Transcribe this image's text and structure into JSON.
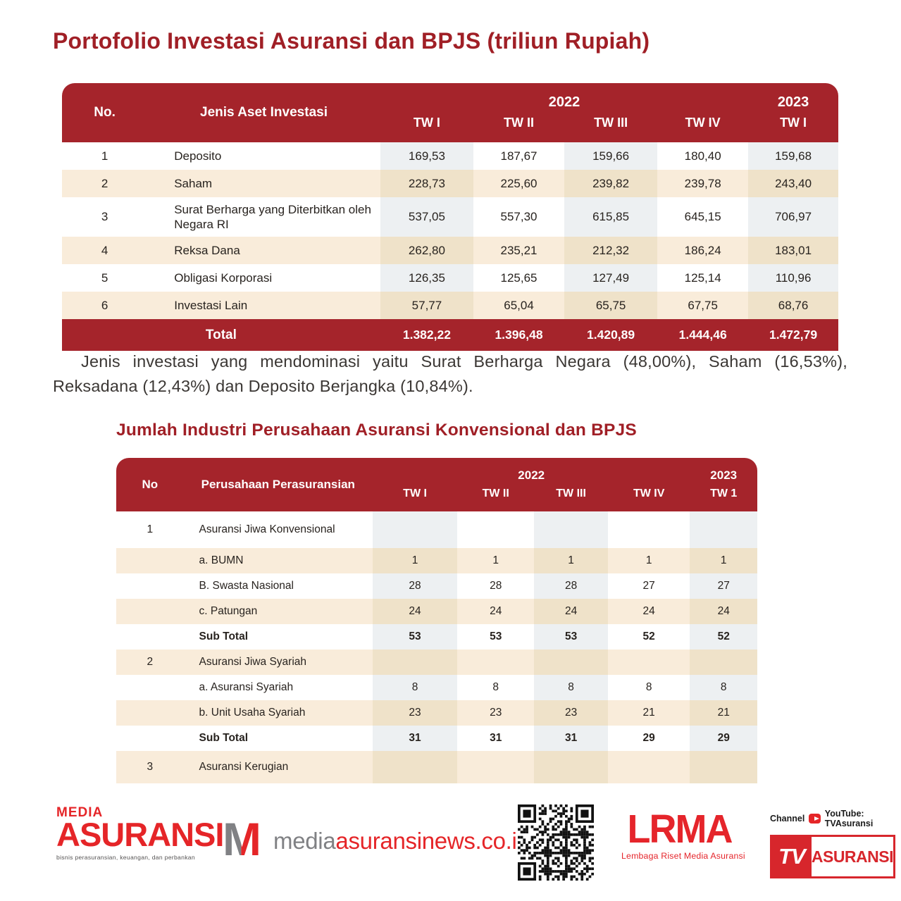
{
  "title": "Portofolio Investasi Asuransi dan BPJS (triliun Rupiah)",
  "colors": {
    "table_header_red": "#A5242B",
    "title_red": "#A01F26",
    "row_tan": "#F9ECDA",
    "band_gray": "#EDF0F2",
    "band_tan": "#EFE2C9",
    "brand_red": "#E52528",
    "brand_gray": "#808184",
    "tv_red": "#D7262C"
  },
  "table1": {
    "headers": {
      "no": "No.",
      "asset": "Jenis Aset Investasi",
      "y2022": "2022",
      "y2023": "2023",
      "quarters2022": [
        "TW I",
        "TW II",
        "TW III",
        "TW IV"
      ],
      "quarter2023": "TW I"
    },
    "rows": [
      {
        "no": "1",
        "label": "Deposito",
        "values": [
          "169,53",
          "187,67",
          "159,66",
          "180,40",
          "159,68"
        ]
      },
      {
        "no": "2",
        "label": "Saham",
        "values": [
          "228,73",
          "225,60",
          "239,82",
          "239,78",
          "243,40"
        ]
      },
      {
        "no": "3",
        "label": "Surat Berharga yang Diterbitkan oleh Negara RI",
        "values": [
          "537,05",
          "557,30",
          "615,85",
          "645,15",
          "706,97"
        ]
      },
      {
        "no": "4",
        "label": "Reksa Dana",
        "values": [
          "262,80",
          "235,21",
          "212,32",
          "186,24",
          "183,01"
        ]
      },
      {
        "no": "5",
        "label": "Obligasi Korporasi",
        "values": [
          "126,35",
          "125,65",
          "127,49",
          "125,14",
          "110,96"
        ]
      },
      {
        "no": "6",
        "label": "Investasi Lain",
        "values": [
          "57,77",
          "65,04",
          "65,75",
          "67,75",
          "68,76"
        ]
      }
    ],
    "total": {
      "label": "Total",
      "values": [
        "1.382,22",
        "1.396,48",
        "1.420,89",
        "1.444,46",
        "1.472,79"
      ]
    }
  },
  "summary": "Jenis investasi yang mendominasi yaitu Surat Berharga Negara (48,00%), Saham (16,53%), Reksadana (12,43%) dan Deposito Berjangka (10,84%).",
  "section2_title": "Jumlah Industri Perusahaan Asuransi Konvensional dan BPJS",
  "table2": {
    "headers": {
      "no": "No",
      "company": "Perusahaan Perasuransian",
      "y2022": "2022",
      "y2023": "2023",
      "quarters2022": [
        "TW I",
        "TW II",
        "TW III",
        "TW IV"
      ],
      "quarter2023": "TW 1"
    },
    "rows": [
      {
        "no": "1",
        "label": "Asuransi Jiwa Konvensional",
        "values": [
          "",
          "",
          "",
          "",
          ""
        ]
      },
      {
        "no": "",
        "label": "a. BUMN",
        "values": [
          "1",
          "1",
          "1",
          "1",
          "1"
        ]
      },
      {
        "no": "",
        "label": "B. Swasta Nasional",
        "values": [
          "28",
          "28",
          "28",
          "27",
          "27"
        ]
      },
      {
        "no": "",
        "label": "c. Patungan",
        "values": [
          "24",
          "24",
          "24",
          "24",
          "24"
        ]
      },
      {
        "no": "",
        "label": "Sub Total",
        "values": [
          "53",
          "53",
          "53",
          "52",
          "52"
        ],
        "emphasis": true
      },
      {
        "no": "2",
        "label": "Asuransi Jiwa Syariah",
        "values": [
          "",
          "",
          "",
          "",
          ""
        ]
      },
      {
        "no": "",
        "label": "a. Asuransi Syariah",
        "values": [
          "8",
          "8",
          "8",
          "8",
          "8"
        ]
      },
      {
        "no": "",
        "label": "b. Unit Usaha Syariah",
        "values": [
          "23",
          "23",
          "23",
          "21",
          "21"
        ]
      },
      {
        "no": "",
        "label": "Sub Total",
        "values": [
          "31",
          "31",
          "31",
          "29",
          "29"
        ],
        "emphasis": true
      },
      {
        "no": "3",
        "label": "Asuransi Kerugian",
        "values": [
          "",
          "",
          "",
          "",
          ""
        ]
      }
    ]
  },
  "footer": {
    "media_asuransi": {
      "top": "MEDIA",
      "main": "ASURANSI",
      "tagline": "bisnis perasuransian, keuangan, dan perbankan"
    },
    "website": {
      "monogram": "M",
      "gray": "media",
      "red": "asuransinews.co.id"
    },
    "lrma": {
      "name": "LRMA",
      "sub": "Lembaga Riset Media Asuransi"
    },
    "tv": {
      "channel_label": "Channel",
      "youtube_label": "YouTube: TVAsuransi",
      "tv": "TV",
      "asuransi": "ASURANSI"
    }
  }
}
